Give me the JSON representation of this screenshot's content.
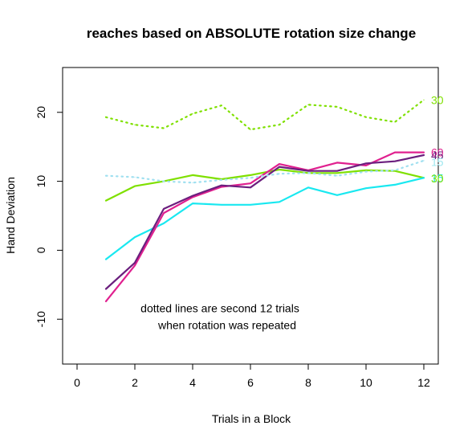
{
  "chart_data": {
    "type": "line",
    "title": "reaches based on ABSOLUTE rotation size change",
    "xlabel": "Trials in a Block",
    "ylabel": "Hand Deviation",
    "xlim": [
      -0.5,
      12.5
    ],
    "ylim": [
      -16.5,
      26.5
    ],
    "x_ticks": [
      0,
      2,
      4,
      6,
      8,
      10,
      12
    ],
    "y_ticks": [
      -10,
      0,
      10,
      20
    ],
    "x": [
      1,
      2,
      3,
      4,
      5,
      6,
      7,
      8,
      9,
      10,
      11,
      12
    ],
    "grid": false,
    "legend": "none",
    "series": [
      {
        "name": "30",
        "style": "solid",
        "color": "#7FE000",
        "values": [
          7.2,
          9.3,
          10.0,
          10.9,
          10.3,
          10.9,
          11.7,
          11.2,
          11.2,
          11.6,
          11.5,
          10.5
        ]
      },
      {
        "name": "15",
        "style": "solid",
        "color": "#19E8F0",
        "values": [
          -1.3,
          1.9,
          3.9,
          6.8,
          6.6,
          6.6,
          7.0,
          9.1,
          8.0,
          9.0,
          9.5,
          10.5
        ]
      },
      {
        "name": "60",
        "style": "solid",
        "color": "#E0208F",
        "values": [
          -7.4,
          -2.2,
          5.4,
          7.7,
          9.2,
          9.7,
          12.5,
          11.6,
          12.7,
          12.3,
          14.2,
          14.2
        ]
      },
      {
        "name": "45",
        "style": "solid",
        "color": "#6B1F7E",
        "values": [
          -5.6,
          -1.8,
          6.0,
          7.9,
          9.4,
          9.1,
          12.1,
          11.5,
          11.5,
          12.6,
          12.9,
          13.8
        ]
      },
      {
        "name": "",
        "style": "dotted",
        "color": "#7FE000",
        "values": [
          19.3,
          18.2,
          17.7,
          19.8,
          21.0,
          17.5,
          18.2,
          21.1,
          20.8,
          19.3,
          18.6,
          21.8
        ]
      },
      {
        "name": "",
        "style": "dotted",
        "color": "#A0E0F0",
        "values": [
          10.8,
          10.6,
          10.0,
          9.8,
          10.2,
          10.5,
          11.1,
          11.2,
          10.8,
          11.4,
          11.6,
          13.0
        ]
      }
    ],
    "end_labels": [
      {
        "text": "30",
        "color": "#7FE000",
        "y": 21.8
      },
      {
        "text": "60",
        "color": "#E0208F",
        "y": 14.2
      },
      {
        "text": "45",
        "color": "#6B1F7E",
        "y": 13.8
      },
      {
        "text": "15",
        "color": "#A0E8F0",
        "y": 12.8
      },
      {
        "text": "15",
        "color": "#19E8F0",
        "y": 10.5
      },
      {
        "text": "30",
        "color": "#7FE000",
        "y": 10.4
      }
    ],
    "annotation": [
      "dotted lines are second 12 trials",
      "when rotation was repeated"
    ],
    "annotation_pos": {
      "x": 6.0,
      "y": -9.0
    }
  }
}
